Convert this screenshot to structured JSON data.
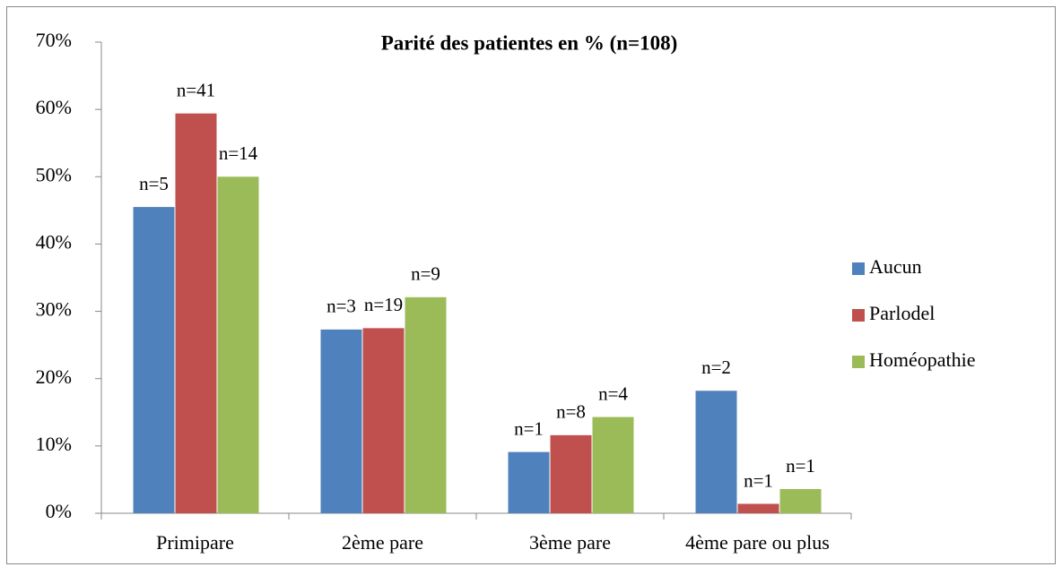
{
  "chart_data": {
    "type": "bar",
    "title": "Parité des patientes en % (n=108)",
    "categories": [
      "Primipare",
      "2ème pare",
      "3ème pare",
      "4ème pare ou plus"
    ],
    "series": [
      {
        "name": "Aucun",
        "color": "#4f81bd",
        "values": [
          45.5,
          27.3,
          9.1,
          18.2
        ],
        "labels": [
          "n=5",
          "n=3",
          "n=1",
          "n=2"
        ]
      },
      {
        "name": "Parlodel",
        "color": "#c0504d",
        "values": [
          59.4,
          27.5,
          11.6,
          1.4
        ],
        "labels": [
          "n=41",
          "n=19",
          "n=8",
          "n=1"
        ]
      },
      {
        "name": "Homéopathie",
        "color": "#9bbb59",
        "values": [
          50,
          32.1,
          14.3,
          3.6
        ],
        "labels": [
          "n=14",
          "n=9",
          "n=4",
          "n=1"
        ]
      }
    ],
    "ylim": [
      0,
      70
    ],
    "yticks": [
      {
        "value": 0,
        "label": "0%"
      },
      {
        "value": 10,
        "label": "10%"
      },
      {
        "value": 20,
        "label": "20%"
      },
      {
        "value": 30,
        "label": "30%"
      },
      {
        "value": 40,
        "label": "40%"
      },
      {
        "value": 50,
        "label": "50%"
      },
      {
        "value": 60,
        "label": "60%"
      },
      {
        "value": 70,
        "label": "70%"
      }
    ],
    "grid": false,
    "legend": "right"
  }
}
